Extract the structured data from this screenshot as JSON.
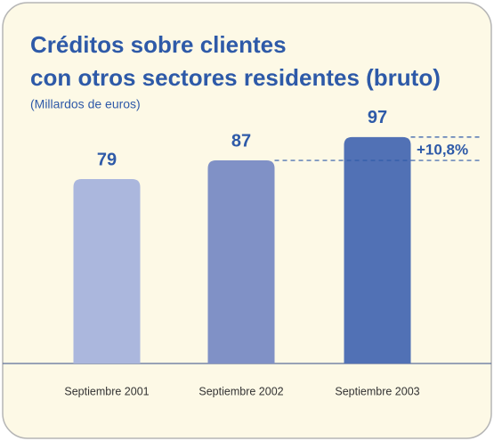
{
  "chart_data": {
    "type": "bar",
    "title": [
      "Créditos sobre clientes",
      "con otros sectores residentes (bruto)"
    ],
    "subtitle": "(Millardos de euros)",
    "categories": [
      "Septiembre 2001",
      "Septiembre 2002",
      "Septiembre 2003"
    ],
    "values": [
      79,
      87,
      97
    ],
    "colors": [
      "#abb7dd",
      "#8091c6",
      "#5171b5"
    ],
    "ylim": [
      0,
      100
    ],
    "annotation": "+10,8%"
  }
}
